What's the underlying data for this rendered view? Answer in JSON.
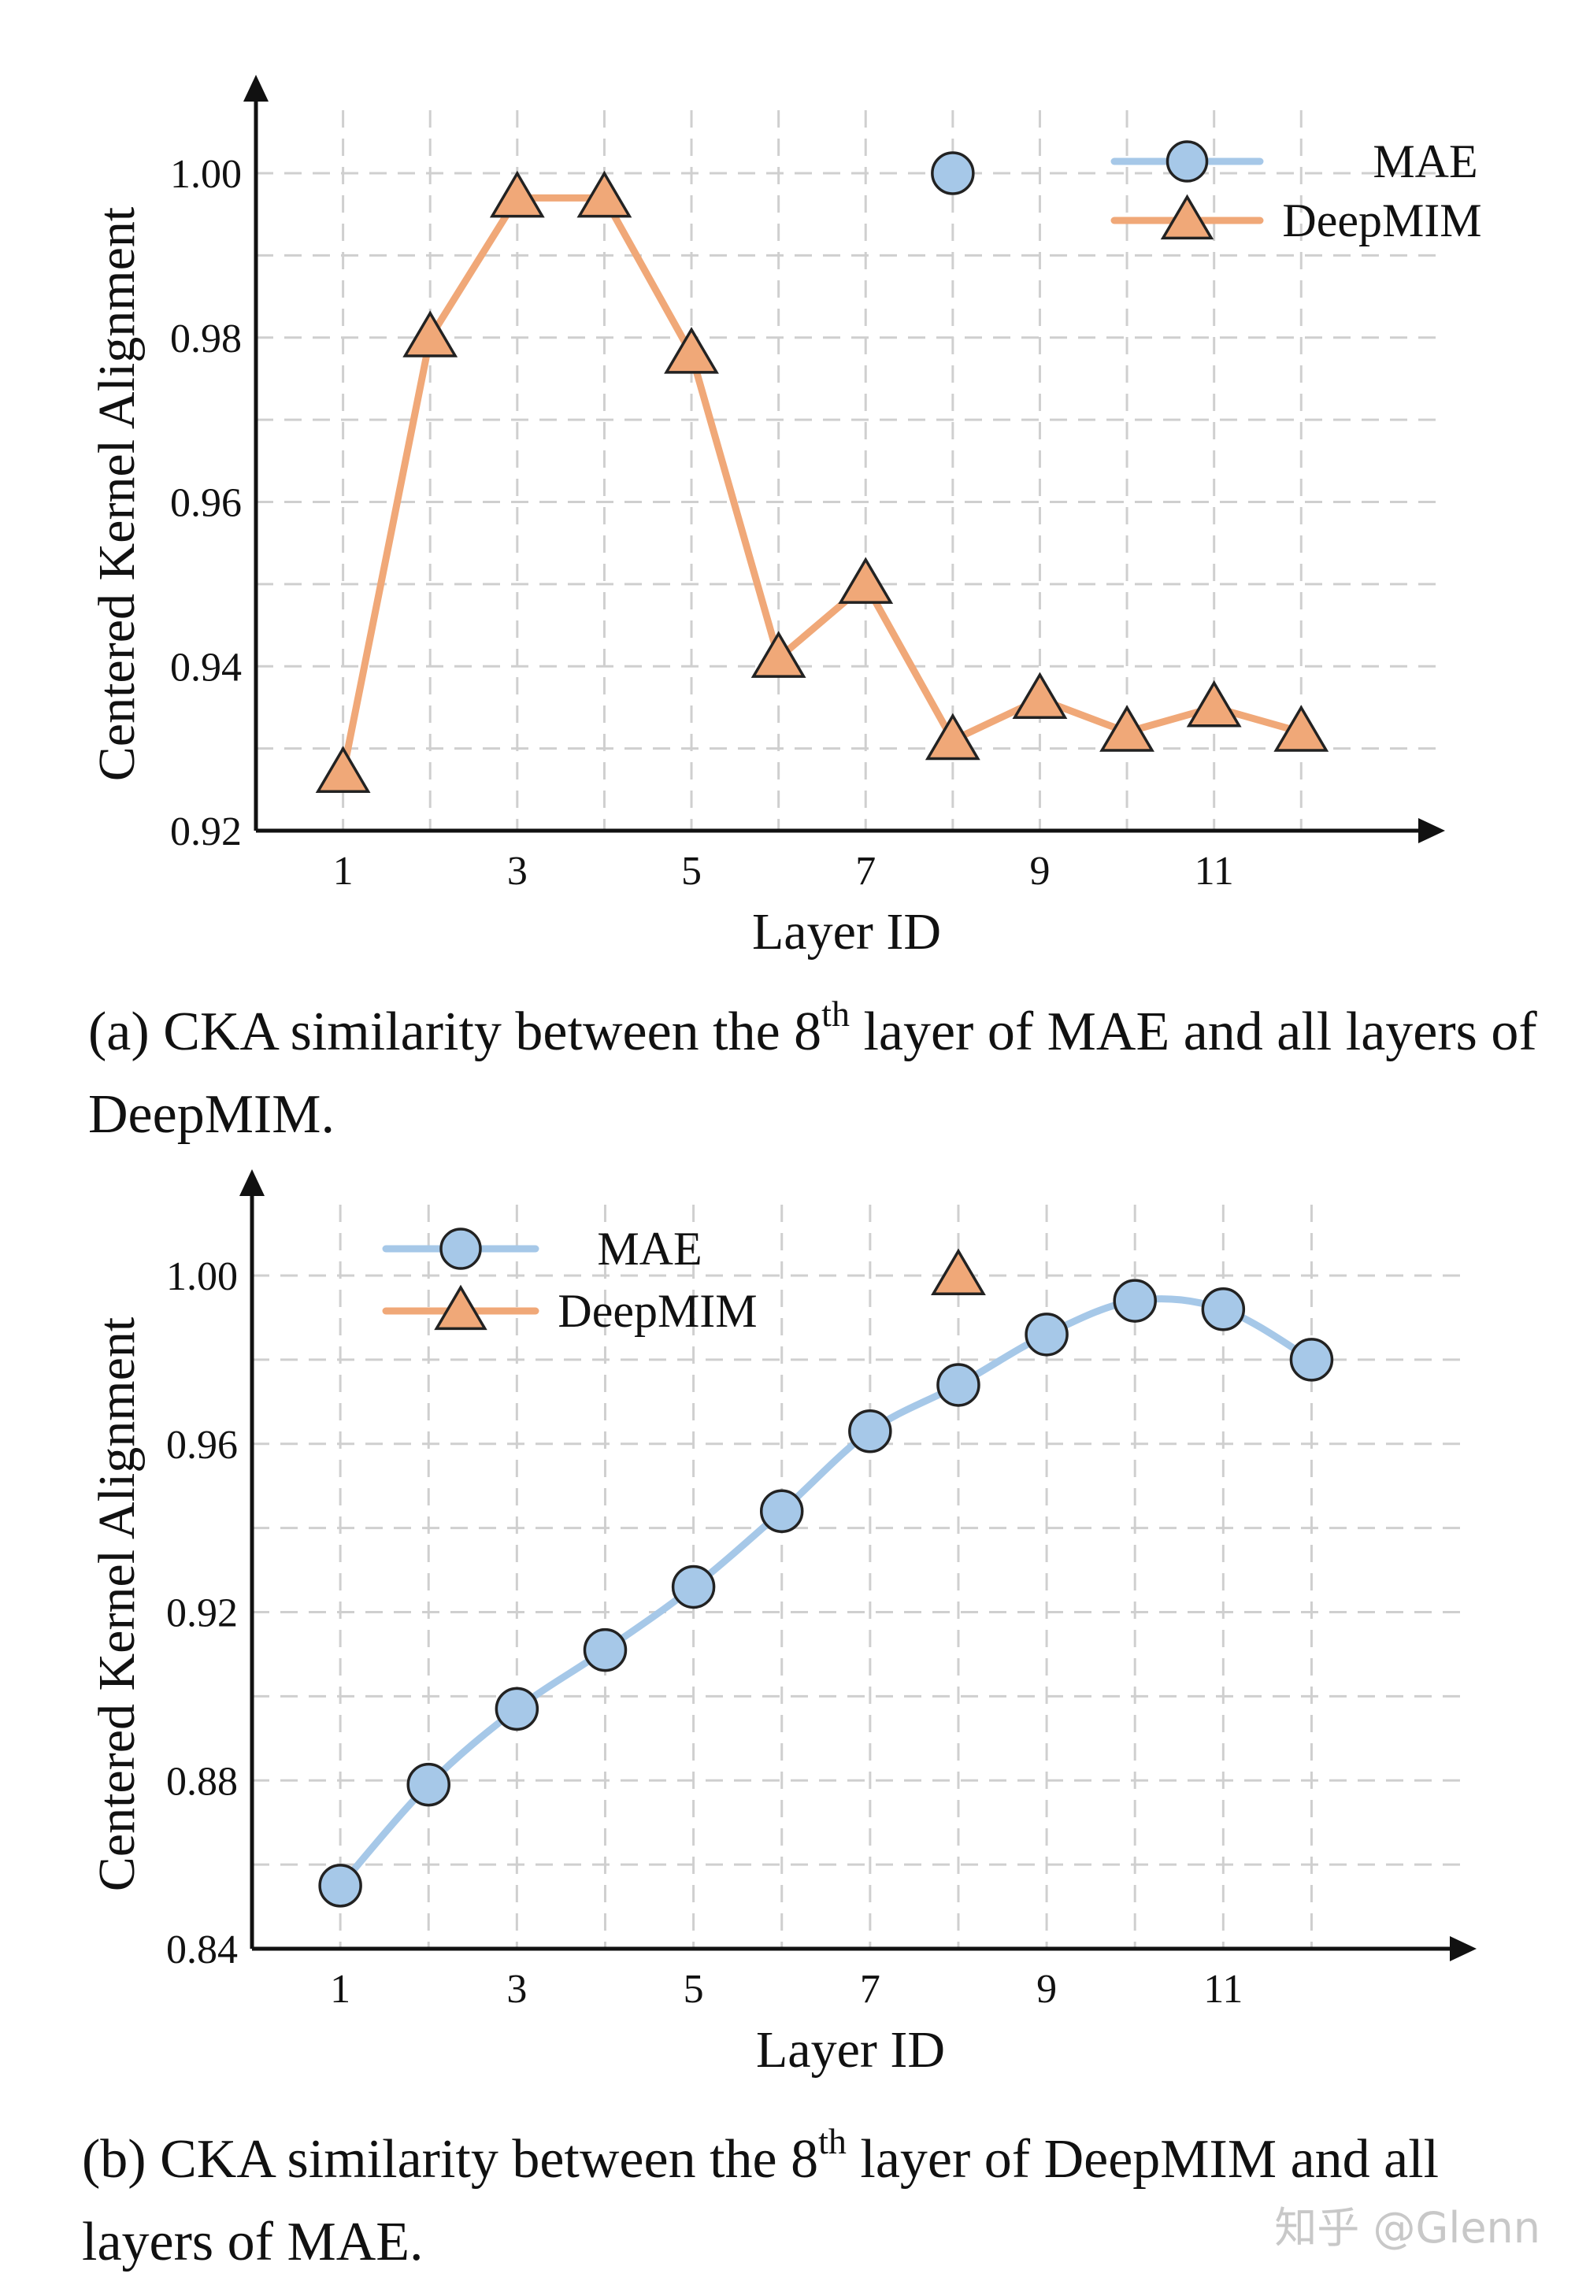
{
  "chart_data": [
    {
      "type": "line",
      "xlabel": "Layer ID",
      "ylabel": "Centered Kernel Alignment",
      "xlim": [
        0,
        13.2
      ],
      "ylim": [
        0.92,
        1.0
      ],
      "x_ticks": [
        "1",
        "3",
        "5",
        "7",
        "9",
        "11"
      ],
      "y_ticks": [
        "0.92",
        "0.94",
        "0.96",
        "0.98",
        "1.00"
      ],
      "grid": true,
      "legend": "top-right",
      "series": [
        {
          "name": "MAE",
          "color": "#a6c8e8",
          "marker": "circle",
          "points": [
            {
              "x": 8,
              "y": 1.0
            }
          ]
        },
        {
          "name": "DeepMIM",
          "color": "#f0a878",
          "marker": "triangle",
          "points": [
            {
              "x": 1,
              "y": 0.927
            },
            {
              "x": 2,
              "y": 0.98
            },
            {
              "x": 3,
              "y": 0.997
            },
            {
              "x": 4,
              "y": 0.997
            },
            {
              "x": 5,
              "y": 0.978
            },
            {
              "x": 6,
              "y": 0.941
            },
            {
              "x": 7,
              "y": 0.95
            },
            {
              "x": 8,
              "y": 0.931
            },
            {
              "x": 9,
              "y": 0.936
            },
            {
              "x": 10,
              "y": 0.932
            },
            {
              "x": 11,
              "y": 0.935
            },
            {
              "x": 12,
              "y": 0.932
            }
          ]
        }
      ]
    },
    {
      "type": "line",
      "xlabel": "Layer ID",
      "ylabel": "Centered Kernel Alignment",
      "xlim": [
        0,
        13.2
      ],
      "ylim": [
        0.84,
        1.0
      ],
      "x_ticks": [
        "1",
        "3",
        "5",
        "7",
        "9",
        "11"
      ],
      "y_ticks": [
        "0.84",
        "0.88",
        "0.92",
        "0.96",
        "1.00"
      ],
      "grid": true,
      "legend": "top-left",
      "series": [
        {
          "name": "MAE",
          "color": "#a6c8e8",
          "marker": "circle",
          "points": [
            {
              "x": 1,
              "y": 0.855
            },
            {
              "x": 2,
              "y": 0.879
            },
            {
              "x": 3,
              "y": 0.897
            },
            {
              "x": 4,
              "y": 0.911
            },
            {
              "x": 5,
              "y": 0.926
            },
            {
              "x": 6,
              "y": 0.944
            },
            {
              "x": 7,
              "y": 0.963
            },
            {
              "x": 8,
              "y": 0.974
            },
            {
              "x": 9,
              "y": 0.986
            },
            {
              "x": 10,
              "y": 0.994
            },
            {
              "x": 11,
              "y": 0.992
            },
            {
              "x": 12,
              "y": 0.98
            }
          ]
        },
        {
          "name": "DeepMIM",
          "color": "#f0a878",
          "marker": "triangle",
          "points": [
            {
              "x": 8,
              "y": 1.0
            }
          ]
        }
      ]
    }
  ],
  "captions": {
    "a_pre": "(a) CKA similarity between the 8",
    "a_sup": "th",
    "a_post": " layer of MAE and all layers of DeepMIM.",
    "b_pre": "(b) CKA similarity between the 8",
    "b_sup": "th",
    "b_post": " layer of DeepMIM and all layers of MAE."
  },
  "watermark": "知乎 @Glenn"
}
